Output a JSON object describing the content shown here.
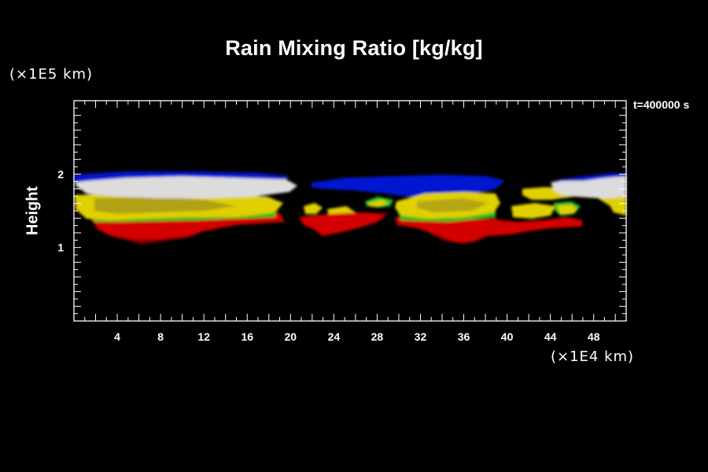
{
  "chart_data": {
    "type": "heatmap",
    "title": "Rain Mixing Ratio [kg/kg]",
    "ylabel": "Height",
    "yscale_label": "(×1E5 km)",
    "xscale_label": "(×1E4 km)",
    "time_label": "t=400000 s",
    "xlim": [
      0,
      51
    ],
    "ylim": [
      0,
      3
    ],
    "x_ticks": [
      4,
      8,
      12,
      16,
      20,
      24,
      28,
      32,
      36,
      40,
      44,
      48
    ],
    "y_ticks": [
      1,
      2
    ],
    "colors": {
      "blue": "#0018d0",
      "white": "#e6e6e6",
      "yellow": "#e8d800",
      "green": "#30d030",
      "red": "#d80000",
      "dark_red": "#8a0000"
    }
  }
}
